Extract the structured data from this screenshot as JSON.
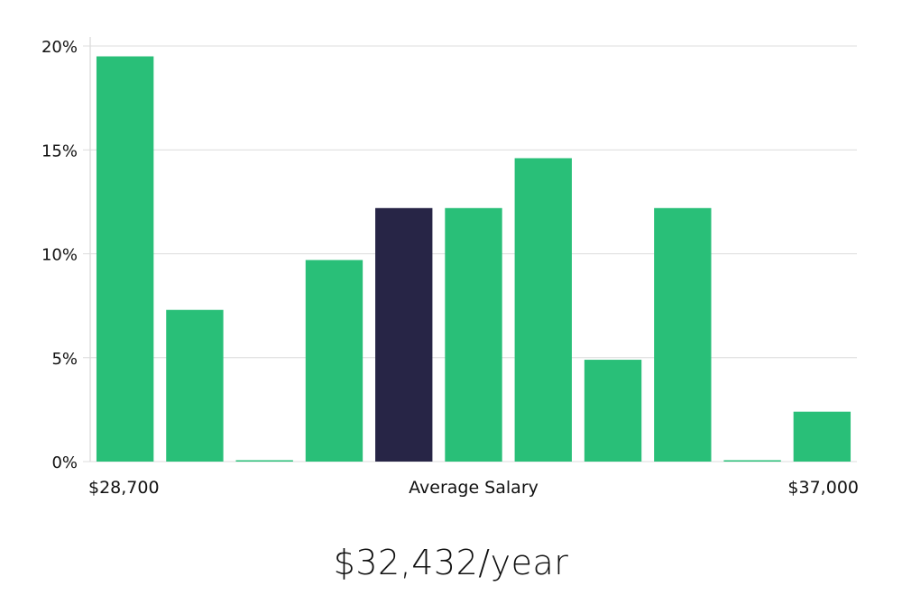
{
  "chart_data": {
    "type": "bar",
    "title": "",
    "xlabel": "Average Salary",
    "ylabel": "",
    "x_range_labels": {
      "min": "$28,700",
      "max": "$37,000"
    },
    "ylim": [
      0,
      20
    ],
    "yticks": [
      0,
      5,
      10,
      15,
      20
    ],
    "ytick_labels": [
      "0%",
      "5%",
      "10%",
      "15%",
      "20%"
    ],
    "grid": true,
    "values": [
      19.5,
      7.3,
      0,
      9.7,
      12.2,
      12.2,
      14.6,
      4.9,
      12.2,
      0,
      2.4
    ],
    "highlight_index": 4
  },
  "summary": {
    "salary": "$32,432/year"
  },
  "colors": {
    "bar": "#29bf78",
    "bar_highlight": "#272546",
    "grid": "#dcdcdc",
    "axis": "#cfcfcf"
  }
}
